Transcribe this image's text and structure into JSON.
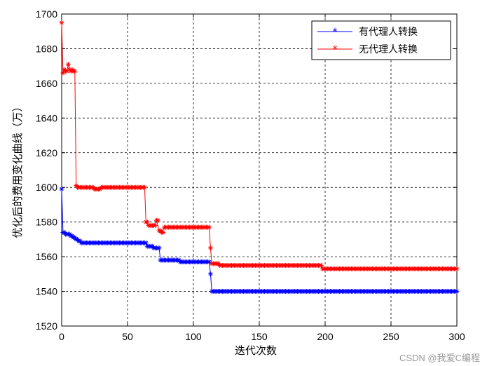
{
  "chart_data": {
    "type": "line",
    "xlabel": "迭代次数",
    "ylabel": "优化后的费用变化曲线（万）",
    "xlim": [
      0,
      300
    ],
    "ylim": [
      1520,
      1700
    ],
    "xticks": [
      0,
      50,
      100,
      150,
      200,
      250,
      300
    ],
    "yticks": [
      1520,
      1540,
      1560,
      1580,
      1600,
      1620,
      1640,
      1660,
      1680,
      1700
    ],
    "grid": "dashed",
    "legend_position": "top-right",
    "series": [
      {
        "name": "有代理人转换",
        "color": "#0000ff",
        "marker": "asterisk",
        "points": [
          [
            0,
            1599
          ],
          [
            1,
            1574
          ],
          [
            3,
            1573
          ],
          [
            5,
            1573
          ],
          [
            7,
            1572
          ],
          [
            9,
            1571
          ],
          [
            11,
            1570
          ],
          [
            13,
            1569
          ],
          [
            15,
            1568
          ],
          [
            20,
            1568
          ],
          [
            30,
            1568
          ],
          [
            40,
            1568
          ],
          [
            50,
            1568
          ],
          [
            60,
            1568
          ],
          [
            64,
            1568
          ],
          [
            65,
            1566
          ],
          [
            70,
            1565
          ],
          [
            74,
            1565
          ],
          [
            75,
            1558
          ],
          [
            80,
            1558
          ],
          [
            90,
            1557
          ],
          [
            100,
            1557
          ],
          [
            110,
            1557
          ],
          [
            112,
            1557
          ],
          [
            113,
            1550
          ],
          [
            114,
            1540
          ],
          [
            120,
            1540
          ],
          [
            150,
            1540
          ],
          [
            200,
            1540
          ],
          [
            250,
            1540
          ],
          [
            300,
            1540
          ]
        ]
      },
      {
        "name": "无代理人转换",
        "color": "#ff0000",
        "marker": "asterisk",
        "points": [
          [
            0,
            1695
          ],
          [
            1,
            1666
          ],
          [
            2,
            1668
          ],
          [
            3,
            1667
          ],
          [
            4,
            1667
          ],
          [
            5,
            1671
          ],
          [
            6,
            1668
          ],
          [
            7,
            1667
          ],
          [
            8,
            1668
          ],
          [
            9,
            1667
          ],
          [
            10,
            1667
          ],
          [
            11,
            1601
          ],
          [
            12,
            1600
          ],
          [
            15,
            1600
          ],
          [
            20,
            1600
          ],
          [
            25,
            1599
          ],
          [
            30,
            1600
          ],
          [
            40,
            1600
          ],
          [
            50,
            1600
          ],
          [
            60,
            1600
          ],
          [
            63,
            1600
          ],
          [
            64,
            1580
          ],
          [
            66,
            1578
          ],
          [
            70,
            1578
          ],
          [
            72,
            1581
          ],
          [
            74,
            1575
          ],
          [
            76,
            1574
          ],
          [
            78,
            1577
          ],
          [
            80,
            1577
          ],
          [
            90,
            1577
          ],
          [
            100,
            1577
          ],
          [
            110,
            1577
          ],
          [
            112,
            1577
          ],
          [
            113,
            1565
          ],
          [
            114,
            1556
          ],
          [
            120,
            1555
          ],
          [
            150,
            1555
          ],
          [
            180,
            1555
          ],
          [
            197,
            1555
          ],
          [
            198,
            1553
          ],
          [
            200,
            1553
          ],
          [
            250,
            1553
          ],
          [
            300,
            1553
          ]
        ]
      }
    ]
  },
  "watermark": "CSDN @我爱C编程"
}
